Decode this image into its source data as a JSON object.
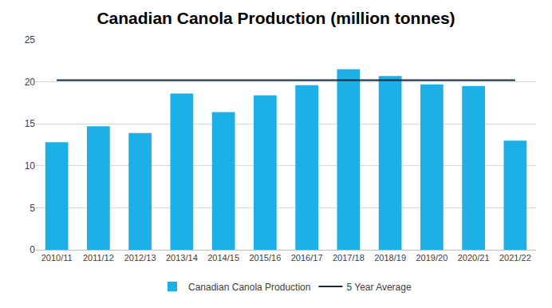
{
  "chart_data": {
    "type": "bar",
    "title": "Canadian Canola Production (million tonnes)",
    "categories": [
      "2010/11",
      "2011/12",
      "2012/13",
      "2013/14",
      "2014/15",
      "2015/16",
      "2016/17",
      "2017/18",
      "2018/19",
      "2019/20",
      "2020/21",
      "2021/22"
    ],
    "series": [
      {
        "name": "Canadian Canola Production",
        "type": "bar",
        "color": "#1cb0e6",
        "values": [
          12.8,
          14.7,
          13.9,
          18.6,
          16.4,
          18.4,
          19.6,
          21.5,
          20.7,
          19.7,
          19.5,
          13.0
        ]
      },
      {
        "name": "5 Year Average",
        "type": "line",
        "color": "#13293d",
        "values": [
          20.2,
          20.2,
          20.2,
          20.2,
          20.2,
          20.2,
          20.2,
          20.2,
          20.2,
          20.2,
          20.2,
          20.2
        ]
      }
    ],
    "ylim": [
      0,
      25
    ],
    "yticks": [
      0,
      5,
      10,
      15,
      20,
      25
    ],
    "grid": true,
    "legend": "bottom"
  }
}
